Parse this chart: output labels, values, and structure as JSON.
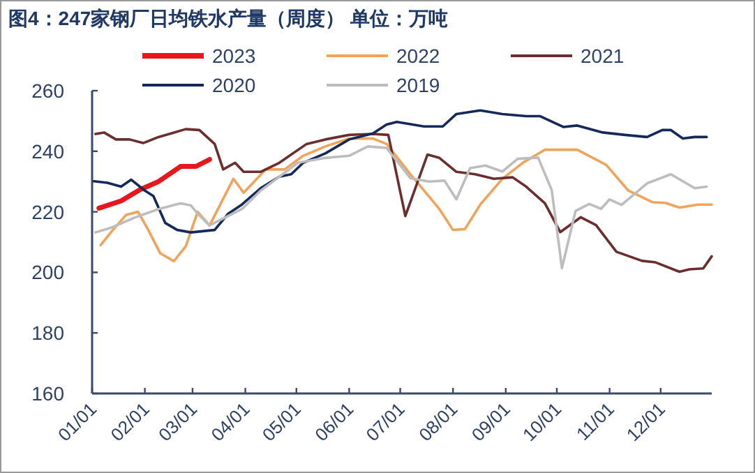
{
  "chart_data": {
    "type": "line",
    "title": "图4：247家钢厂日均铁水产量（周度）    单位：万吨",
    "legend": "top",
    "grid": false,
    "line_style": "solid",
    "xlim": [
      "--01-01",
      "--12-31"
    ],
    "xticks": [
      {
        "value": "--01-01",
        "label": "01/01"
      },
      {
        "value": "--02-01",
        "label": "02/01"
      },
      {
        "value": "--03-01",
        "label": "03/01"
      },
      {
        "value": "--04-01",
        "label": "04/01"
      },
      {
        "value": "--05-01",
        "label": "05/01"
      },
      {
        "value": "--06-01",
        "label": "06/01"
      },
      {
        "value": "--07-01",
        "label": "07/01"
      },
      {
        "value": "--08-01",
        "label": "08/01"
      },
      {
        "value": "--09-01",
        "label": "09/01"
      },
      {
        "value": "--10-01",
        "label": "10/01"
      },
      {
        "value": "--11-01",
        "label": "11/01"
      },
      {
        "value": "--12-01",
        "label": "12/01"
      }
    ],
    "ylim": [
      160,
      260
    ],
    "yticks": [
      160,
      180,
      200,
      220,
      240,
      260
    ],
    "series": [
      {
        "name": "2023",
        "color": "#e8171b",
        "x": [
          "--01-05",
          "--01-18",
          "--01-29",
          "--02-09",
          "--02-22",
          "--03-03",
          "--03-11"
        ],
        "values": [
          221.2,
          223.6,
          227.3,
          230,
          235,
          235,
          237.3
        ]
      },
      {
        "name": "2022",
        "color": "#f0a45b",
        "x": [
          "--01-06",
          "--01-12",
          "--01-21",
          "--01-28",
          "--02-03",
          "--02-10",
          "--02-18",
          "--02-25",
          "--03-04",
          "--03-11",
          "--03-25",
          "--03-31",
          "--04-13",
          "--04-24",
          "--05-05",
          "--05-18",
          "--06-01",
          "--06-15",
          "--06-23",
          "--07-07",
          "--07-24",
          "--08-01",
          "--08-08",
          "--08-17",
          "--08-30",
          "--09-11",
          "--09-24",
          "--10-13",
          "--10-30",
          "--11-12",
          "--11-26",
          "--12-04",
          "--12-12",
          "--12-23",
          "--12-31"
        ],
        "values": [
          209,
          213.2,
          219,
          220,
          214,
          206.3,
          203.7,
          208.6,
          220,
          215.5,
          230.9,
          226.3,
          234,
          234,
          238.5,
          241.6,
          244.2,
          244.2,
          242.4,
          232.4,
          220.9,
          214,
          214.3,
          222.4,
          230.9,
          236.2,
          240.5,
          240.5,
          235.5,
          227,
          223.2,
          222.9,
          221.4,
          222.4,
          222.4
        ]
      },
      {
        "name": "2021",
        "color": "#6b2d2d",
        "x": [
          "--01-03",
          "--01-08",
          "--01-15",
          "--01-23",
          "--01-31",
          "--02-09",
          "--02-25",
          "--03-05",
          "--03-14",
          "--03-19",
          "--03-26",
          "--03-31",
          "--04-10",
          "--04-21",
          "--05-07",
          "--05-18",
          "--06-01",
          "--06-15",
          "--06-24",
          "--07-04",
          "--07-17",
          "--07-24",
          "--08-03",
          "--08-14",
          "--08-25",
          "--09-05",
          "--09-13",
          "--09-24",
          "--10-03",
          "--10-15",
          "--10-24",
          "--11-05",
          "--11-20",
          "--11-28",
          "--12-12",
          "--12-18",
          "--12-26",
          "--12-31"
        ],
        "values": [
          245.7,
          246.2,
          243.9,
          243.9,
          242.7,
          244.7,
          247.3,
          247,
          242.4,
          234,
          236.2,
          233.2,
          233.2,
          236.2,
          242.4,
          243.9,
          245.4,
          245.7,
          245.4,
          218.6,
          238.9,
          237.8,
          233.2,
          232.4,
          230.9,
          231.4,
          228.3,
          222.8,
          213.3,
          218.2,
          215.6,
          206.8,
          203.8,
          203.3,
          200.2,
          201,
          201.3,
          205.3
        ]
      },
      {
        "name": "2020",
        "color": "#14285a",
        "x": [
          "--01-02",
          "--01-10",
          "--01-18",
          "--01-24",
          "--02-01",
          "--02-06",
          "--02-13",
          "--02-20",
          "--02-28",
          "--03-14",
          "--03-22",
          "--03-30",
          "--04-10",
          "--04-21",
          "--04-28",
          "--05-05",
          "--05-18",
          "--06-01",
          "--06-15",
          "--06-23",
          "--06-29",
          "--07-15",
          "--07-26",
          "--08-03",
          "--08-17",
          "--08-30",
          "--09-13",
          "--09-21",
          "--10-05",
          "--10-13",
          "--10-28",
          "--11-10",
          "--11-23",
          "--12-02",
          "--12-07",
          "--12-14",
          "--12-21",
          "--12-28"
        ],
        "values": [
          230.1,
          229.6,
          228.3,
          230.6,
          227,
          225.2,
          216.3,
          214,
          213.2,
          214,
          219.4,
          222.4,
          227.8,
          231.6,
          232.4,
          236.2,
          239.3,
          243.9,
          245.9,
          248.8,
          249.7,
          248.2,
          248.2,
          252.3,
          253.5,
          252.3,
          251.6,
          251.6,
          248,
          248.5,
          246.2,
          245.4,
          244.7,
          247,
          247,
          244.2,
          244.7,
          244.7
        ]
      },
      {
        "name": "2019",
        "color": "#bdbdbd",
        "x": [
          "--01-03",
          "--01-12",
          "--01-26",
          "--02-09",
          "--02-22",
          "--02-28",
          "--03-04",
          "--03-11",
          "--03-19",
          "--03-30",
          "--04-10",
          "--04-21",
          "--05-02",
          "--05-18",
          "--06-01",
          "--06-12",
          "--06-23",
          "--07-07",
          "--07-18",
          "--07-27",
          "--08-03",
          "--08-11",
          "--08-20",
          "--08-30",
          "--09-08",
          "--09-20",
          "--09-28",
          "--10-04",
          "--10-12",
          "--10-20",
          "--10-27",
          "--11-01",
          "--11-08",
          "--11-15",
          "--11-23",
          "--12-07",
          "--12-21",
          "--12-28"
        ],
        "values": [
          213.2,
          214.7,
          218.1,
          220.9,
          222.8,
          222.1,
          219.4,
          215.5,
          217.8,
          220.9,
          227,
          231.6,
          236.2,
          237.8,
          238.5,
          241.6,
          241.1,
          231.1,
          230,
          230.3,
          224.1,
          234.4,
          235.3,
          233.3,
          237.5,
          237.9,
          227.2,
          201.4,
          220.3,
          222.6,
          221,
          224.1,
          222.3,
          225.6,
          229.4,
          232.4,
          227.8,
          228.3
        ]
      }
    ]
  }
}
